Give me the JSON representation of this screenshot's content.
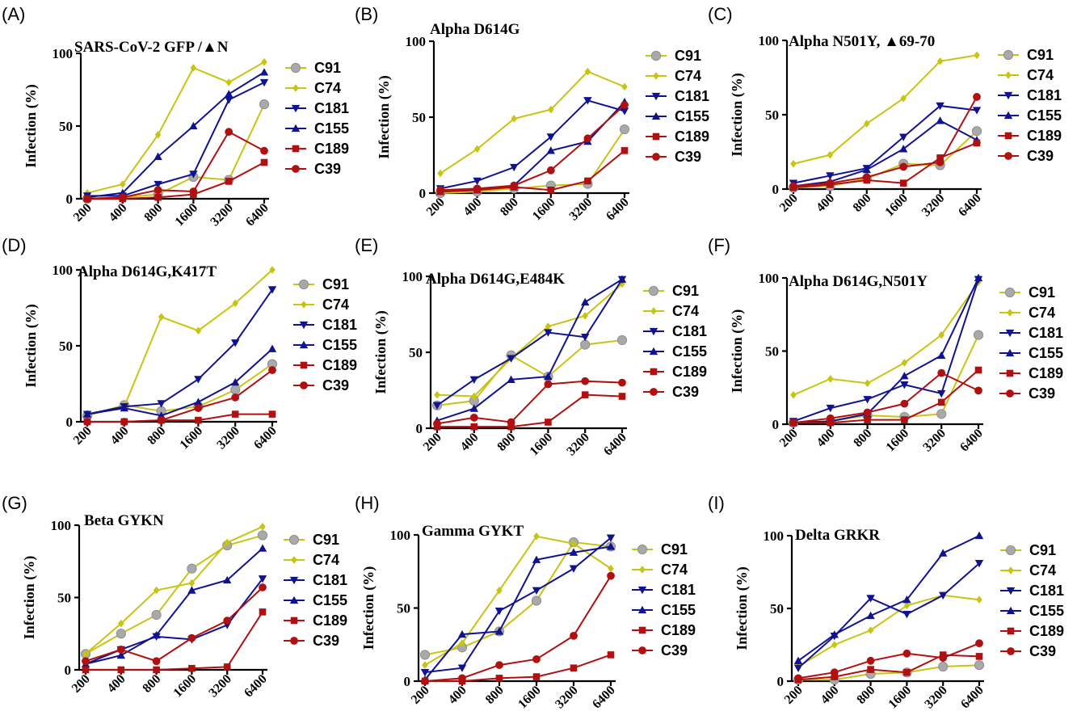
{
  "chart_data": [
    {
      "panel_label": "(A)",
      "title": "SARS-CoV-2 GFP /▲N",
      "type": "line",
      "categories": [
        "200",
        "400",
        "800",
        "1600",
        "3200",
        "6400"
      ],
      "ylabel": "Infection (%)",
      "ylim": [
        0,
        100
      ],
      "yticks": [
        0,
        50,
        100
      ],
      "series": [
        {
          "name": "C91",
          "values": [
            0,
            1,
            3,
            15,
            13,
            65
          ]
        },
        {
          "name": "C74",
          "values": [
            4,
            10,
            44,
            90,
            80,
            94
          ]
        },
        {
          "name": "C181",
          "values": [
            2,
            2,
            10,
            17,
            68,
            80
          ]
        },
        {
          "name": "C155",
          "values": [
            1,
            4,
            29,
            50,
            72,
            87
          ]
        },
        {
          "name": "C189",
          "values": [
            0,
            0,
            1,
            3,
            12,
            25
          ]
        },
        {
          "name": "C39",
          "values": [
            0,
            1,
            6,
            5,
            46,
            33
          ]
        }
      ]
    },
    {
      "panel_label": "(B)",
      "title": "Alpha D614G",
      "type": "line",
      "categories": [
        "200",
        "400",
        "800",
        "1600",
        "3200",
        "6400"
      ],
      "ylabel": "Infection (%)",
      "ylim": [
        0,
        100
      ],
      "yticks": [
        0,
        50,
        100
      ],
      "series": [
        {
          "name": "C91",
          "values": [
            0,
            1,
            3,
            5,
            6,
            42
          ]
        },
        {
          "name": "C74",
          "values": [
            13,
            29,
            49,
            55,
            80,
            70
          ]
        },
        {
          "name": "C181",
          "values": [
            3,
            8,
            17,
            37,
            61,
            54
          ]
        },
        {
          "name": "C155",
          "values": [
            1,
            2,
            5,
            28,
            34,
            60
          ]
        },
        {
          "name": "C189",
          "values": [
            1,
            2,
            4,
            2,
            8,
            28
          ]
        },
        {
          "name": "C39",
          "values": [
            2,
            3,
            5,
            15,
            36,
            58
          ]
        }
      ]
    },
    {
      "panel_label": "(C)",
      "title": "Alpha N501Y, ▲69-70",
      "type": "line",
      "categories": [
        "200",
        "400",
        "800",
        "1600",
        "3200",
        "6400"
      ],
      "ylabel": "Infection (%)",
      "ylim": [
        0,
        100
      ],
      "yticks": [
        0,
        50,
        100
      ],
      "series": [
        {
          "name": "C91",
          "values": [
            1,
            2,
            7,
            17,
            16,
            39
          ]
        },
        {
          "name": "C74",
          "values": [
            17,
            23,
            44,
            61,
            86,
            90
          ]
        },
        {
          "name": "C181",
          "values": [
            4,
            9,
            14,
            35,
            56,
            53
          ]
        },
        {
          "name": "C155",
          "values": [
            2,
            5,
            13,
            27,
            46,
            33
          ]
        },
        {
          "name": "C189",
          "values": [
            1,
            3,
            6,
            4,
            21,
            31
          ]
        },
        {
          "name": "C39",
          "values": [
            2,
            4,
            8,
            15,
            18,
            62
          ]
        }
      ]
    },
    {
      "panel_label": "(D)",
      "title": "Alpha D614G,K417T",
      "type": "line",
      "categories": [
        "200",
        "400",
        "800",
        "1600",
        "3200",
        "6400"
      ],
      "ylabel": "Infection (%)",
      "ylim": [
        0,
        100
      ],
      "yticks": [
        0,
        50,
        100
      ],
      "series": [
        {
          "name": "C91",
          "values": [
            4,
            11,
            7,
            10,
            21,
            38
          ]
        },
        {
          "name": "C74",
          "values": [
            5,
            10,
            69,
            60,
            78,
            100
          ]
        },
        {
          "name": "C181",
          "values": [
            5,
            10,
            12,
            28,
            52,
            87
          ]
        },
        {
          "name": "C155",
          "values": [
            5,
            9,
            4,
            13,
            26,
            48
          ]
        },
        {
          "name": "C189",
          "values": [
            0,
            0,
            1,
            1,
            5,
            5
          ]
        },
        {
          "name": "C39",
          "values": [
            0,
            0,
            1,
            9,
            16,
            34
          ]
        }
      ]
    },
    {
      "panel_label": "(E)",
      "title": "Alpha D614G,E484K",
      "type": "line",
      "categories": [
        "200",
        "400",
        "800",
        "1600",
        "3200",
        "6400"
      ],
      "ylabel": "Infection (%)",
      "ylim": [
        0,
        100
      ],
      "yticks": [
        0,
        50,
        100
      ],
      "series": [
        {
          "name": "C91",
          "values": [
            15,
            18,
            48,
            34,
            55,
            58
          ]
        },
        {
          "name": "C74",
          "values": [
            22,
            21,
            46,
            67,
            74,
            95
          ]
        },
        {
          "name": "C181",
          "values": [
            15,
            32,
            46,
            63,
            60,
            98
          ]
        },
        {
          "name": "C155",
          "values": [
            5,
            13,
            32,
            34,
            83,
            98
          ]
        },
        {
          "name": "C189",
          "values": [
            1,
            1,
            1,
            4,
            22,
            21
          ]
        },
        {
          "name": "C39",
          "values": [
            3,
            7,
            4,
            29,
            31,
            30
          ]
        }
      ]
    },
    {
      "panel_label": "(F)",
      "title": "Alpha D614G,N501Y",
      "type": "line",
      "categories": [
        "200",
        "400",
        "800",
        "1600",
        "3200",
        "6400"
      ],
      "ylabel": "Infection (%)",
      "ylim": [
        0,
        100
      ],
      "yticks": [
        0,
        50,
        100
      ],
      "series": [
        {
          "name": "C91",
          "values": [
            1,
            2,
            6,
            5,
            7,
            61
          ]
        },
        {
          "name": "C74",
          "values": [
            20,
            31,
            28,
            42,
            61,
            97
          ]
        },
        {
          "name": "C181",
          "values": [
            2,
            11,
            17,
            27,
            21,
            99
          ]
        },
        {
          "name": "C155",
          "values": [
            1,
            2,
            7,
            33,
            47,
            100
          ]
        },
        {
          "name": "C189",
          "values": [
            1,
            1,
            3,
            3,
            15,
            37
          ]
        },
        {
          "name": "C39",
          "values": [
            1,
            4,
            8,
            14,
            35,
            23
          ]
        }
      ]
    },
    {
      "panel_label": "(G)",
      "title": "Beta GYKN",
      "type": "line",
      "categories": [
        "200",
        "400",
        "800",
        "1600",
        "3200",
        "6400"
      ],
      "ylabel": "Infection (%)",
      "ylim": [
        0,
        100
      ],
      "yticks": [
        0,
        50,
        100
      ],
      "series": [
        {
          "name": "C91",
          "values": [
            11,
            25,
            38,
            70,
            86,
            93
          ]
        },
        {
          "name": "C74",
          "values": [
            11,
            32,
            55,
            60,
            88,
            99
          ]
        },
        {
          "name": "C181",
          "values": [
            4,
            14,
            23,
            21,
            31,
            63
          ]
        },
        {
          "name": "C155",
          "values": [
            4,
            10,
            24,
            55,
            62,
            84
          ]
        },
        {
          "name": "C189",
          "values": [
            0,
            0,
            0,
            1,
            2,
            40
          ]
        },
        {
          "name": "C39",
          "values": [
            6,
            14,
            6,
            22,
            34,
            57
          ]
        }
      ]
    },
    {
      "panel_label": "(H)",
      "title": "Gamma GYKT",
      "type": "line",
      "categories": [
        "200",
        "400",
        "800",
        "1600",
        "3200",
        "6400"
      ],
      "ylabel": "Infection (%)",
      "ylim": [
        0,
        100
      ],
      "yticks": [
        0,
        50,
        100
      ],
      "series": [
        {
          "name": "C91",
          "values": [
            18,
            23,
            34,
            55,
            95,
            92
          ]
        },
        {
          "name": "C74",
          "values": [
            11,
            26,
            62,
            99,
            94,
            77
          ]
        },
        {
          "name": "C181",
          "values": [
            6,
            9,
            48,
            62,
            77,
            98
          ]
        },
        {
          "name": "C155",
          "values": [
            1,
            32,
            34,
            83,
            88,
            92
          ]
        },
        {
          "name": "C189",
          "values": [
            0,
            0,
            2,
            3,
            9,
            18
          ]
        },
        {
          "name": "C39",
          "values": [
            0,
            2,
            11,
            15,
            31,
            72
          ]
        }
      ]
    },
    {
      "panel_label": "(I)",
      "title": "Delta GRKR",
      "type": "line",
      "categories": [
        "200",
        "400",
        "800",
        "1600",
        "3200",
        "6400"
      ],
      "ylabel": "Infection (%)",
      "ylim": [
        0,
        100
      ],
      "yticks": [
        0,
        50,
        100
      ],
      "series": [
        {
          "name": "C91",
          "values": [
            1,
            1,
            5,
            6,
            10,
            11
          ]
        },
        {
          "name": "C74",
          "values": [
            10,
            25,
            35,
            52,
            59,
            56
          ]
        },
        {
          "name": "C181",
          "values": [
            9,
            31,
            57,
            46,
            59,
            81
          ]
        },
        {
          "name": "C155",
          "values": [
            14,
            32,
            45,
            56,
            88,
            100
          ]
        },
        {
          "name": "C189",
          "values": [
            1,
            3,
            8,
            6,
            18,
            17
          ]
        },
        {
          "name": "C39",
          "values": [
            2,
            6,
            14,
            19,
            16,
            26
          ]
        }
      ]
    }
  ],
  "series_styles": {
    "C91": {
      "color": "#c8c412",
      "marker": "circle",
      "marker_fill": "#a9a9a9",
      "marker_stroke": "#8f8f8f"
    },
    "C74": {
      "color": "#c8c412",
      "marker": "diamond",
      "marker_fill": "#c8c412",
      "marker_stroke": "#c8c412"
    },
    "C181": {
      "color": "#10128f",
      "marker": "triangle-down",
      "marker_fill": "#10128f",
      "marker_stroke": "#10128f"
    },
    "C155": {
      "color": "#10128f",
      "marker": "triangle-up",
      "marker_fill": "#10128f",
      "marker_stroke": "#10128f"
    },
    "C189": {
      "color": "#b01010",
      "marker": "square",
      "marker_fill": "#b01010",
      "marker_stroke": "#b01010"
    },
    "C39": {
      "color": "#b01010",
      "marker": "circle",
      "marker_fill": "#b01010",
      "marker_stroke": "#b01010"
    }
  }
}
